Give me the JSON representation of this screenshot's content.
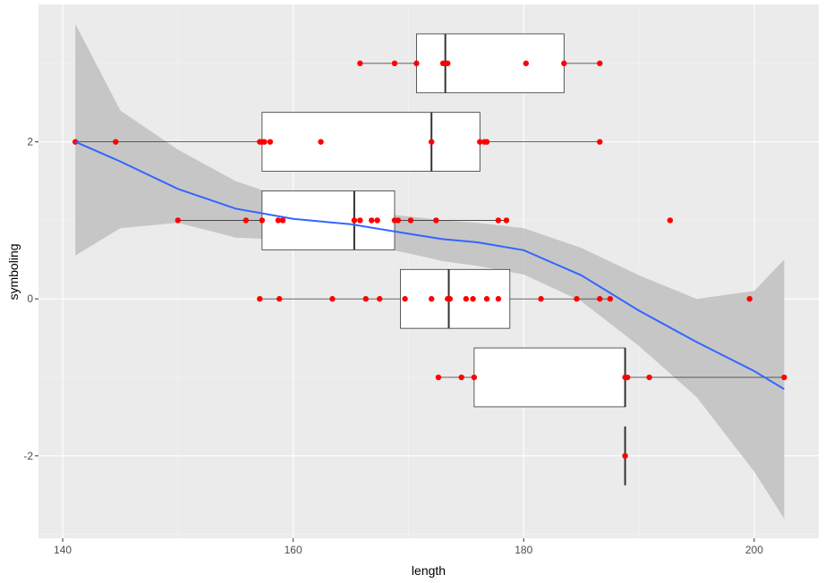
{
  "chart_data": {
    "type": "boxplot+scatter+smooth",
    "xlabel": "length",
    "ylabel": "symboling",
    "xlim": [
      137.9,
      205.6
    ],
    "ylim": [
      -3.05,
      3.75
    ],
    "x_ticks": [
      140,
      160,
      180,
      200
    ],
    "y_ticks": [
      -2,
      0,
      2
    ],
    "x_tick_labels": [
      "140",
      "160",
      "180",
      "200"
    ],
    "y_tick_labels": [
      "-2",
      "0",
      "2"
    ],
    "grid": true,
    "colors": {
      "panel": "#ebebeb",
      "grid_major": "#ffffff",
      "grid_minor": "#f5f5f5",
      "box_fill": "#ffffff",
      "box_line": "#333333",
      "points": "#ff0000",
      "smooth_line": "#3366ff",
      "ribbon": "#c0c0c0"
    },
    "boxplots": [
      {
        "y": 3,
        "min": 165.8,
        "q1": 170.7,
        "median": 173.2,
        "q3": 183.5,
        "max": 186.6
      },
      {
        "y": 2,
        "min": 141.1,
        "q1": 157.3,
        "median": 172.0,
        "q3": 176.2,
        "max": 186.6
      },
      {
        "y": 1,
        "min": 150.0,
        "q1": 157.3,
        "median": 165.3,
        "q3": 168.8,
        "max": 178.5,
        "outliers": [
          192.7
        ]
      },
      {
        "y": 0,
        "min": 157.1,
        "q1": 169.3,
        "median": 173.5,
        "q3": 178.8,
        "max": 187.5,
        "outliers": [
          199.6
        ]
      },
      {
        "y": -1,
        "min": 172.6,
        "q1": 175.7,
        "median": 188.8,
        "q3": 188.8,
        "max": 202.6
      },
      {
        "y": -2,
        "min": 188.8,
        "q1": 188.8,
        "median": 188.8,
        "q3": 188.8,
        "max": 188.8
      }
    ],
    "points": [
      {
        "x": 165.8,
        "y": 3
      },
      {
        "x": 168.8,
        "y": 3
      },
      {
        "x": 170.7,
        "y": 3
      },
      {
        "x": 173.0,
        "y": 3
      },
      {
        "x": 173.2,
        "y": 3
      },
      {
        "x": 173.4,
        "y": 3
      },
      {
        "x": 180.2,
        "y": 3
      },
      {
        "x": 183.5,
        "y": 3
      },
      {
        "x": 186.6,
        "y": 3
      },
      {
        "x": 141.1,
        "y": 2
      },
      {
        "x": 144.6,
        "y": 2
      },
      {
        "x": 157.1,
        "y": 2
      },
      {
        "x": 157.3,
        "y": 2
      },
      {
        "x": 157.5,
        "y": 2
      },
      {
        "x": 158.0,
        "y": 2
      },
      {
        "x": 162.4,
        "y": 2
      },
      {
        "x": 172.0,
        "y": 2
      },
      {
        "x": 176.2,
        "y": 2
      },
      {
        "x": 176.6,
        "y": 2
      },
      {
        "x": 176.8,
        "y": 2
      },
      {
        "x": 186.6,
        "y": 2
      },
      {
        "x": 150.0,
        "y": 1
      },
      {
        "x": 155.9,
        "y": 1
      },
      {
        "x": 157.3,
        "y": 1
      },
      {
        "x": 158.7,
        "y": 1
      },
      {
        "x": 159.1,
        "y": 1
      },
      {
        "x": 165.3,
        "y": 1
      },
      {
        "x": 165.8,
        "y": 1
      },
      {
        "x": 166.8,
        "y": 1
      },
      {
        "x": 167.3,
        "y": 1
      },
      {
        "x": 168.8,
        "y": 1
      },
      {
        "x": 169.1,
        "y": 1
      },
      {
        "x": 170.2,
        "y": 1
      },
      {
        "x": 172.4,
        "y": 1
      },
      {
        "x": 177.8,
        "y": 1
      },
      {
        "x": 178.5,
        "y": 1
      },
      {
        "x": 192.7,
        "y": 1
      },
      {
        "x": 157.1,
        "y": 0
      },
      {
        "x": 158.8,
        "y": 0
      },
      {
        "x": 163.4,
        "y": 0
      },
      {
        "x": 166.3,
        "y": 0
      },
      {
        "x": 167.5,
        "y": 0
      },
      {
        "x": 169.7,
        "y": 0
      },
      {
        "x": 172.0,
        "y": 0
      },
      {
        "x": 173.4,
        "y": 0
      },
      {
        "x": 173.6,
        "y": 0
      },
      {
        "x": 175.0,
        "y": 0
      },
      {
        "x": 175.6,
        "y": 0
      },
      {
        "x": 176.8,
        "y": 0
      },
      {
        "x": 177.8,
        "y": 0
      },
      {
        "x": 181.5,
        "y": 0
      },
      {
        "x": 184.6,
        "y": 0
      },
      {
        "x": 186.6,
        "y": 0
      },
      {
        "x": 187.5,
        "y": 0
      },
      {
        "x": 199.6,
        "y": 0
      },
      {
        "x": 172.6,
        "y": -1
      },
      {
        "x": 174.6,
        "y": -1
      },
      {
        "x": 175.7,
        "y": -1
      },
      {
        "x": 188.8,
        "y": -1
      },
      {
        "x": 189.0,
        "y": -1
      },
      {
        "x": 190.9,
        "y": -1
      },
      {
        "x": 202.6,
        "y": -1
      },
      {
        "x": 188.8,
        "y": -2
      }
    ],
    "smooth": {
      "x": [
        141.1,
        145.0,
        150.0,
        155.0,
        160.0,
        165.0,
        170.0,
        173.0,
        176.0,
        180.0,
        185.0,
        190.0,
        195.0,
        200.0,
        202.6
      ],
      "y": [
        2.0,
        1.75,
        1.4,
        1.15,
        1.02,
        0.95,
        0.83,
        0.76,
        0.72,
        0.62,
        0.3,
        -0.15,
        -0.55,
        -0.92,
        -1.15
      ],
      "upper": [
        3.5,
        2.4,
        1.9,
        1.5,
        1.25,
        1.12,
        1.05,
        1.0,
        0.97,
        0.9,
        0.65,
        0.3,
        0.0,
        0.1,
        0.5
      ],
      "lower": [
        0.55,
        0.9,
        0.97,
        0.78,
        0.75,
        0.73,
        0.58,
        0.48,
        0.42,
        0.31,
        -0.03,
        -0.6,
        -1.25,
        -2.2,
        -2.8
      ]
    }
  }
}
